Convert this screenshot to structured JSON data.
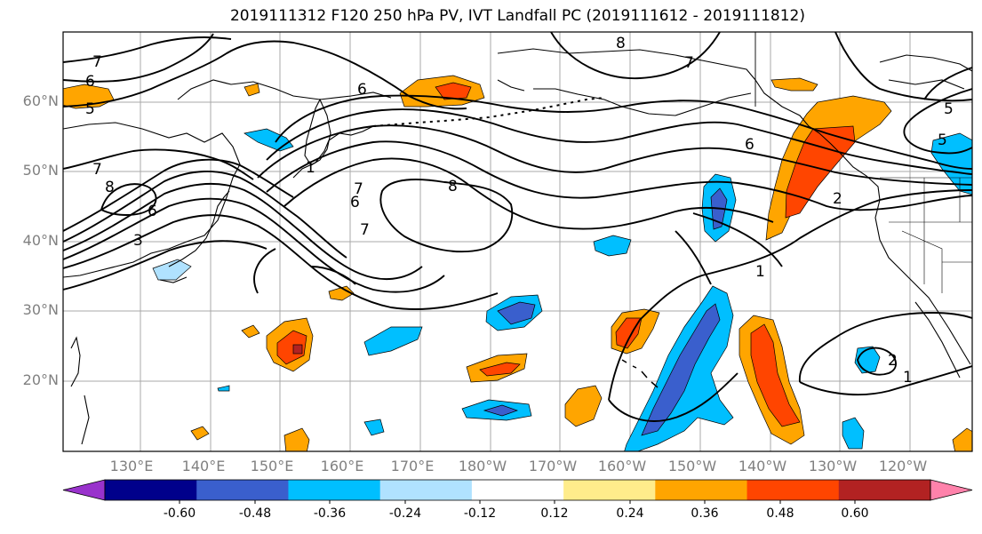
{
  "title": "2019111312 F120 250 hPa PV, IVT Landfall PC (2019111612 - 2019111812)",
  "latitude_labels": [
    "60°N",
    "50°N",
    "40°N",
    "30°N",
    "20°N"
  ],
  "longitude_labels": [
    "130°E",
    "140°E",
    "150°E",
    "160°E",
    "170°E",
    "180°W",
    "170°W",
    "160°W",
    "150°W",
    "140°W",
    "130°W",
    "120°W"
  ],
  "pv_contour_labels": [
    "7",
    "6",
    "5",
    "7",
    "8",
    "6",
    "3",
    "8",
    "7",
    "6",
    "7",
    "1",
    "8",
    "7",
    "6",
    "5",
    "5",
    "2",
    "1",
    "2",
    "1",
    "6"
  ],
  "colorbar": {
    "ticks": [
      "-0.60",
      "-0.48",
      "-0.36",
      "-0.24",
      "-0.12",
      "0.12",
      "0.24",
      "0.36",
      "0.48",
      "0.60"
    ],
    "colors": [
      "#9932cc",
      "#00008b",
      "#3a5fcd",
      "#00bfff",
      "#b0e2ff",
      "#ffffff",
      "#ffec8b",
      "#ffa500",
      "#ff4500",
      "#b22222",
      "#ff82ab"
    ]
  },
  "colors": {
    "coast": "#000000",
    "contour": "#000000",
    "grid": "#a9a9a9",
    "tick_label": "#808080"
  }
}
